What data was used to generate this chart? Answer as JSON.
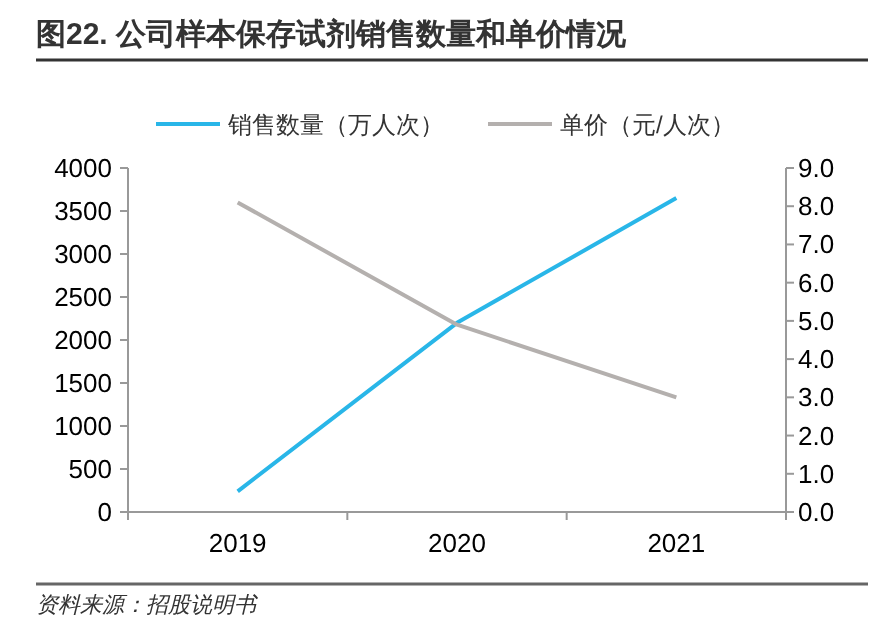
{
  "chart_data": {
    "type": "line",
    "title": "图22. 公司样本保存试剂销售数量和单价情况",
    "categories": [
      "2019",
      "2020",
      "2021"
    ],
    "series": [
      {
        "name": "销售数量（万人次）",
        "color": "#29b6e8",
        "values": [
          240,
          2200,
          3650
        ]
      },
      {
        "name": "单价（元/人次）",
        "color": "#b4b0ae",
        "values": [
          8.1,
          4.9,
          3.0
        ],
        "axis": "y2"
      }
    ],
    "ylim": [
      0,
      4000
    ],
    "yticks": [
      0,
      500,
      1000,
      1500,
      2000,
      2500,
      3000,
      3500,
      4000
    ],
    "y2lim": [
      0,
      9
    ],
    "y2ticks": [
      {
        "value": 0,
        "label": "0.0"
      },
      {
        "value": 1,
        "label": "1.0"
      },
      {
        "value": 2,
        "label": "2.0"
      },
      {
        "value": 3,
        "label": "3.0"
      },
      {
        "value": 4,
        "label": "4.0"
      },
      {
        "value": 5,
        "label": "5.0"
      },
      {
        "value": 6,
        "label": "6.0"
      },
      {
        "value": 7,
        "label": "7.0"
      },
      {
        "value": 8,
        "label": "8.0"
      },
      {
        "value": 9,
        "label": "9.0"
      }
    ],
    "legend": "top",
    "grid": false,
    "annotations": [
      "资料来源：招股说明书"
    ]
  }
}
